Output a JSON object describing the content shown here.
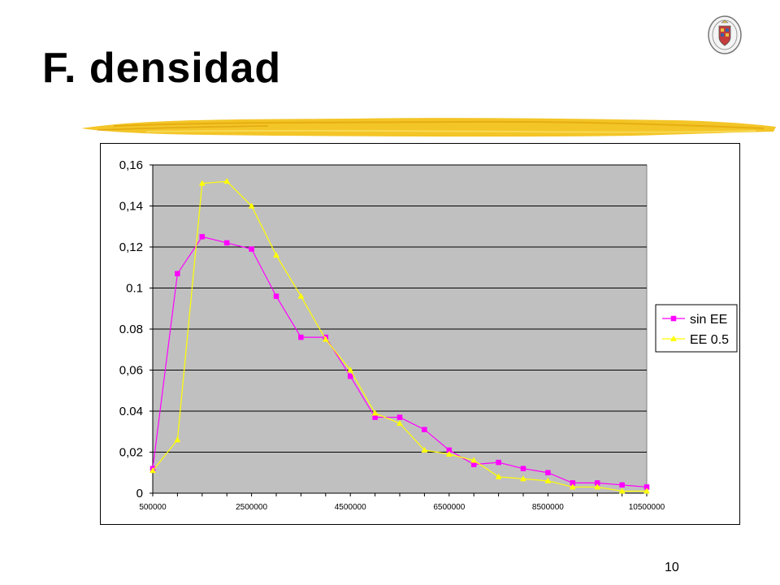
{
  "slide": {
    "title": "F. densidad",
    "page_number": "10",
    "accent_color": "#f2c21b"
  },
  "chart_data": {
    "type": "line",
    "title": "",
    "xlabel": "",
    "ylabel": "",
    "x": [
      500000,
      1000000,
      1500000,
      2000000,
      2500000,
      3000000,
      3500000,
      4000000,
      4500000,
      5000000,
      5500000,
      6000000,
      6500000,
      7000000,
      7500000,
      8000000,
      8500000,
      9000000,
      9500000,
      10000000,
      10500000
    ],
    "x_tick_labels": [
      "500000",
      "2500000",
      "4500000",
      "6500000",
      "8500000",
      "10500000"
    ],
    "x_tick_values": [
      500000,
      2500000,
      4500000,
      6500000,
      8500000,
      10500000
    ],
    "xlim": [
      500000,
      10500000
    ],
    "y_tick_labels": [
      "0",
      "0,02",
      "0.04",
      "0,06",
      "0.08",
      "0.1",
      "0,12",
      "0,14",
      "0,16"
    ],
    "y_tick_values": [
      0,
      0.02,
      0.04,
      0.06,
      0.08,
      0.1,
      0.12,
      0.14,
      0.16
    ],
    "ylim": [
      0,
      0.16
    ],
    "grid": true,
    "plot_background": "#c0c0c0",
    "legend_position": "right",
    "series": [
      {
        "name": "sin EE",
        "color": "#ff00ff",
        "marker": "square",
        "values": [
          0.012,
          0.107,
          0.125,
          0.122,
          0.119,
          0.096,
          0.076,
          0.076,
          0.057,
          0.037,
          0.037,
          0.031,
          0.021,
          0.014,
          0.015,
          0.012,
          0.01,
          0.005,
          0.005,
          0.004,
          0.003
        ]
      },
      {
        "name": "EE 0.5",
        "color": "#ffff00",
        "marker": "triangle",
        "values": [
          0.011,
          0.026,
          0.151,
          0.152,
          0.14,
          0.116,
          0.096,
          0.075,
          0.06,
          0.039,
          0.034,
          0.021,
          0.019,
          0.016,
          0.008,
          0.007,
          0.006,
          0.003,
          0.003,
          0.001,
          0.001
        ]
      }
    ]
  }
}
